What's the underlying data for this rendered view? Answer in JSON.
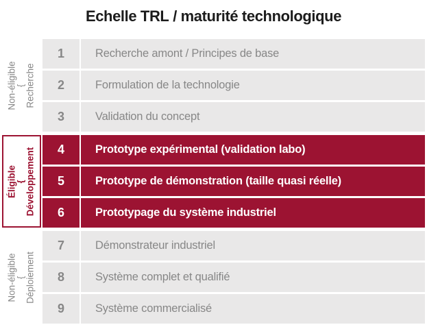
{
  "title": {
    "prefix": "Echelle ",
    "strong": "TRL",
    "suffix": " / maturité technologique"
  },
  "colors": {
    "accent": "#9c1332",
    "row-bg": "#e9e8e8",
    "muted": "#878787",
    "title": "#1c1c1c"
  },
  "sections": [
    {
      "eligibility": "Non-éligible",
      "brace": "{",
      "phase": "Recherche",
      "eligible": false,
      "rows": [
        {
          "level": "1",
          "label": "Recherche amont / Principes de base"
        },
        {
          "level": "2",
          "label": "Formulation de la technologie"
        },
        {
          "level": "3",
          "label": "Validation du concept"
        }
      ]
    },
    {
      "eligibility": "Éligible",
      "brace": "{",
      "phase": "Développement",
      "eligible": true,
      "rows": [
        {
          "level": "4",
          "label": "Prototype expérimental (validation labo)"
        },
        {
          "level": "5",
          "label": "Prototype de démonstration (taille quasi réelle)"
        },
        {
          "level": "6",
          "label": "Prototypage du système industriel"
        }
      ]
    },
    {
      "eligibility": "Non-éligible",
      "brace": "{",
      "phase": "Déploiement",
      "eligible": false,
      "rows": [
        {
          "level": "7",
          "label": "Démonstrateur industriel"
        },
        {
          "level": "8",
          "label": "Système complet et qualifié"
        },
        {
          "level": "9",
          "label": "Système commercialisé"
        }
      ]
    }
  ]
}
